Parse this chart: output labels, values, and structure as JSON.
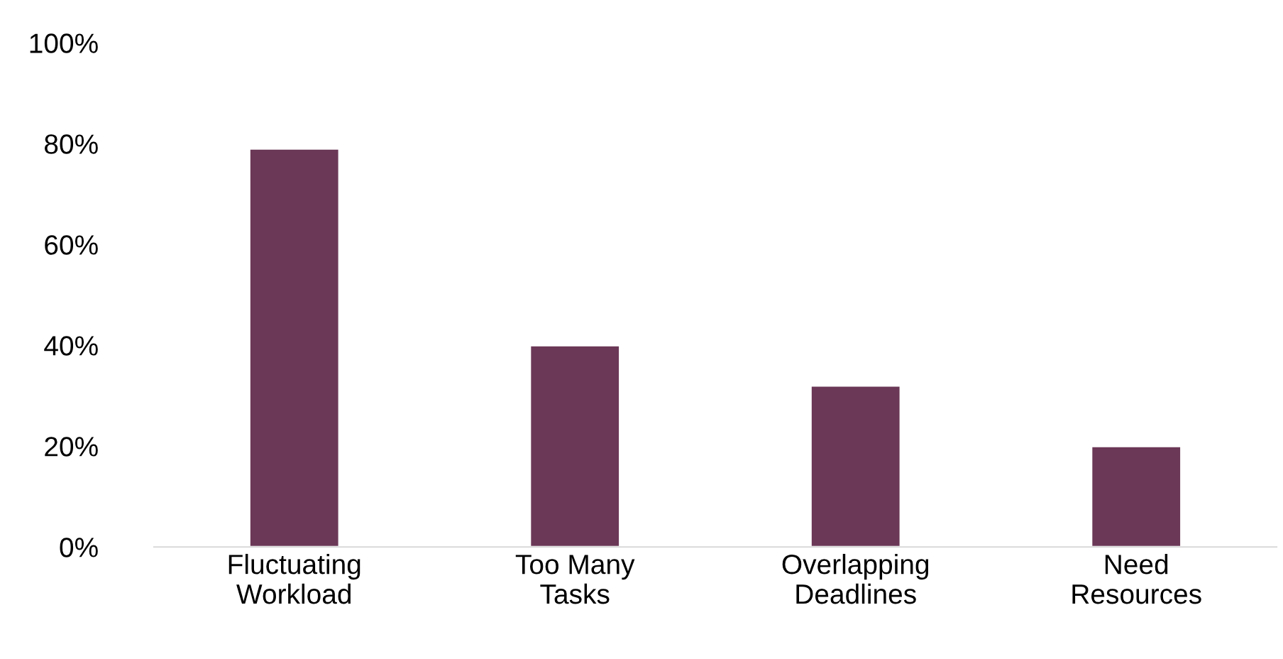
{
  "chart_data": {
    "type": "bar",
    "categories": [
      "Fluctuating\nWorkload",
      "Too Many\nTasks",
      "Overlapping\nDeadlines",
      "Need\nResources"
    ],
    "values": [
      79,
      40,
      32,
      20
    ],
    "color": "#6b3857",
    "ylim": [
      0,
      100
    ],
    "yticks": [
      {
        "value": 0,
        "label": "0%"
      },
      {
        "value": 20,
        "label": "20%"
      },
      {
        "value": 40,
        "label": "40%"
      },
      {
        "value": 60,
        "label": "60%"
      },
      {
        "value": 80,
        "label": "80%"
      },
      {
        "value": 100,
        "label": "100%"
      }
    ],
    "grid": false,
    "legend": false
  }
}
